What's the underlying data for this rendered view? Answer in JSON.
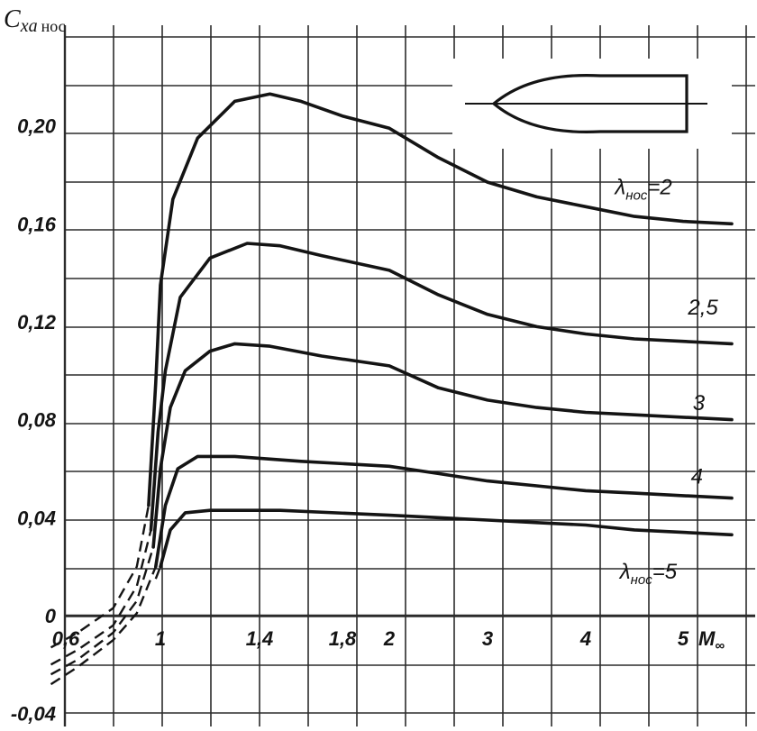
{
  "chart_data": {
    "type": "line",
    "ylabel": {
      "main": "C",
      "sub": "xa",
      "extra": "нос"
    },
    "xlabel": {
      "main": "M",
      "sub": "∞"
    },
    "x_scale": "piecewise",
    "x_ticks": [
      {
        "value": 0.6,
        "label": "0,6"
      },
      {
        "value": 1.0,
        "label": "1"
      },
      {
        "value": 1.4,
        "label": "1,4"
      },
      {
        "value": 1.8,
        "label": "1,8"
      },
      {
        "value": 2.0,
        "label": "2"
      },
      {
        "value": 3.0,
        "label": "3"
      },
      {
        "value": 4.0,
        "label": "4"
      },
      {
        "value": 5.0,
        "label": "5"
      }
    ],
    "y_ticks": [
      {
        "value": -0.04,
        "label": "-0,04"
      },
      {
        "value": 0,
        "label": "0"
      },
      {
        "value": 0.04,
        "label": "0,04"
      },
      {
        "value": 0.08,
        "label": "0,08"
      },
      {
        "value": 0.12,
        "label": "0,12"
      },
      {
        "value": 0.16,
        "label": "0,16"
      },
      {
        "value": 0.2,
        "label": "0,20"
      }
    ],
    "ylim": [
      -0.045,
      0.24
    ],
    "grid": true,
    "series": [
      {
        "name": "λнос=2",
        "label": {
          "sym": "λ",
          "sub": "нос",
          "val": "=2",
          "at": [
            4.3,
            0.172
          ]
        },
        "dashed": [
          [
            0.5,
            -0.013
          ],
          [
            0.65,
            -0.007
          ],
          [
            0.8,
            0.003
          ],
          [
            0.9,
            0.02
          ],
          [
            0.95,
            0.045
          ]
        ],
        "values": [
          [
            0.95,
            0.045
          ],
          [
            0.98,
            0.095
          ],
          [
            1.0,
            0.135
          ],
          [
            1.05,
            0.17
          ],
          [
            1.15,
            0.195
          ],
          [
            1.3,
            0.21
          ],
          [
            1.45,
            0.213
          ],
          [
            1.6,
            0.21
          ],
          [
            1.8,
            0.204
          ],
          [
            2.0,
            0.199
          ],
          [
            2.5,
            0.187
          ],
          [
            3.0,
            0.177
          ],
          [
            3.5,
            0.171
          ],
          [
            4.0,
            0.167
          ],
          [
            4.5,
            0.163
          ],
          [
            5.0,
            0.161
          ],
          [
            5.5,
            0.16
          ]
        ]
      },
      {
        "name": "2,5",
        "label": {
          "val": "2,5",
          "at": [
            5.05,
            0.123
          ]
        },
        "dashed": [
          [
            0.5,
            -0.02
          ],
          [
            0.65,
            -0.014
          ],
          [
            0.8,
            -0.004
          ],
          [
            0.9,
            0.012
          ],
          [
            0.96,
            0.035
          ]
        ],
        "values": [
          [
            0.96,
            0.035
          ],
          [
            0.99,
            0.075
          ],
          [
            1.02,
            0.1
          ],
          [
            1.08,
            0.13
          ],
          [
            1.2,
            0.146
          ],
          [
            1.35,
            0.152
          ],
          [
            1.5,
            0.151
          ],
          [
            1.7,
            0.147
          ],
          [
            2.0,
            0.141
          ],
          [
            2.5,
            0.131
          ],
          [
            3.0,
            0.123
          ],
          [
            3.5,
            0.118
          ],
          [
            4.0,
            0.115
          ],
          [
            4.5,
            0.113
          ],
          [
            5.0,
            0.112
          ],
          [
            5.5,
            0.111
          ]
        ]
      },
      {
        "name": "3",
        "label": {
          "val": "3",
          "at": [
            5.1,
            0.084
          ]
        },
        "dashed": [
          [
            0.5,
            -0.024
          ],
          [
            0.65,
            -0.018
          ],
          [
            0.8,
            -0.007
          ],
          [
            0.9,
            0.006
          ],
          [
            0.97,
            0.028
          ]
        ],
        "values": [
          [
            0.97,
            0.028
          ],
          [
            1.0,
            0.06
          ],
          [
            1.04,
            0.085
          ],
          [
            1.1,
            0.1
          ],
          [
            1.2,
            0.108
          ],
          [
            1.3,
            0.111
          ],
          [
            1.45,
            0.11
          ],
          [
            1.7,
            0.106
          ],
          [
            2.0,
            0.102
          ],
          [
            2.5,
            0.093
          ],
          [
            3.0,
            0.088
          ],
          [
            3.5,
            0.085
          ],
          [
            4.0,
            0.083
          ],
          [
            4.5,
            0.082
          ],
          [
            5.0,
            0.081
          ],
          [
            5.5,
            0.08
          ]
        ]
      },
      {
        "name": "4",
        "label": {
          "val": "4",
          "at": [
            5.08,
            0.054
          ]
        },
        "dashed": [
          [
            0.5,
            -0.028
          ],
          [
            0.65,
            -0.021
          ],
          [
            0.8,
            -0.01
          ],
          [
            0.9,
            0.001
          ],
          [
            0.98,
            0.02
          ]
        ],
        "values": [
          [
            0.98,
            0.02
          ],
          [
            1.02,
            0.045
          ],
          [
            1.07,
            0.06
          ],
          [
            1.15,
            0.065
          ],
          [
            1.3,
            0.065
          ],
          [
            1.6,
            0.063
          ],
          [
            2.0,
            0.061
          ],
          [
            2.5,
            0.058
          ],
          [
            3.0,
            0.055
          ],
          [
            3.5,
            0.053
          ],
          [
            4.0,
            0.051
          ],
          [
            4.5,
            0.05
          ],
          [
            5.0,
            0.049
          ],
          [
            5.5,
            0.048
          ]
        ]
      },
      {
        "name": "λнос=5",
        "label": {
          "sym": "λ",
          "sub": "нос",
          "val": "=5",
          "at": [
            4.35,
            0.015
          ]
        },
        "dashed": [
          [
            0.98,
            0.015
          ],
          [
            1.0,
            0.02
          ]
        ],
        "values": [
          [
            1.0,
            0.02
          ],
          [
            1.04,
            0.035
          ],
          [
            1.1,
            0.042
          ],
          [
            1.2,
            0.043
          ],
          [
            1.5,
            0.043
          ],
          [
            2.0,
            0.041
          ],
          [
            2.5,
            0.04
          ],
          [
            3.0,
            0.039
          ],
          [
            3.5,
            0.038
          ],
          [
            4.0,
            0.037
          ],
          [
            4.5,
            0.035
          ],
          [
            5.0,
            0.034
          ],
          [
            5.5,
            0.033
          ]
        ]
      }
    ],
    "inset": "nose-body-sketch",
    "line_color": "#141414",
    "grid_color": "#2b2b2b"
  }
}
